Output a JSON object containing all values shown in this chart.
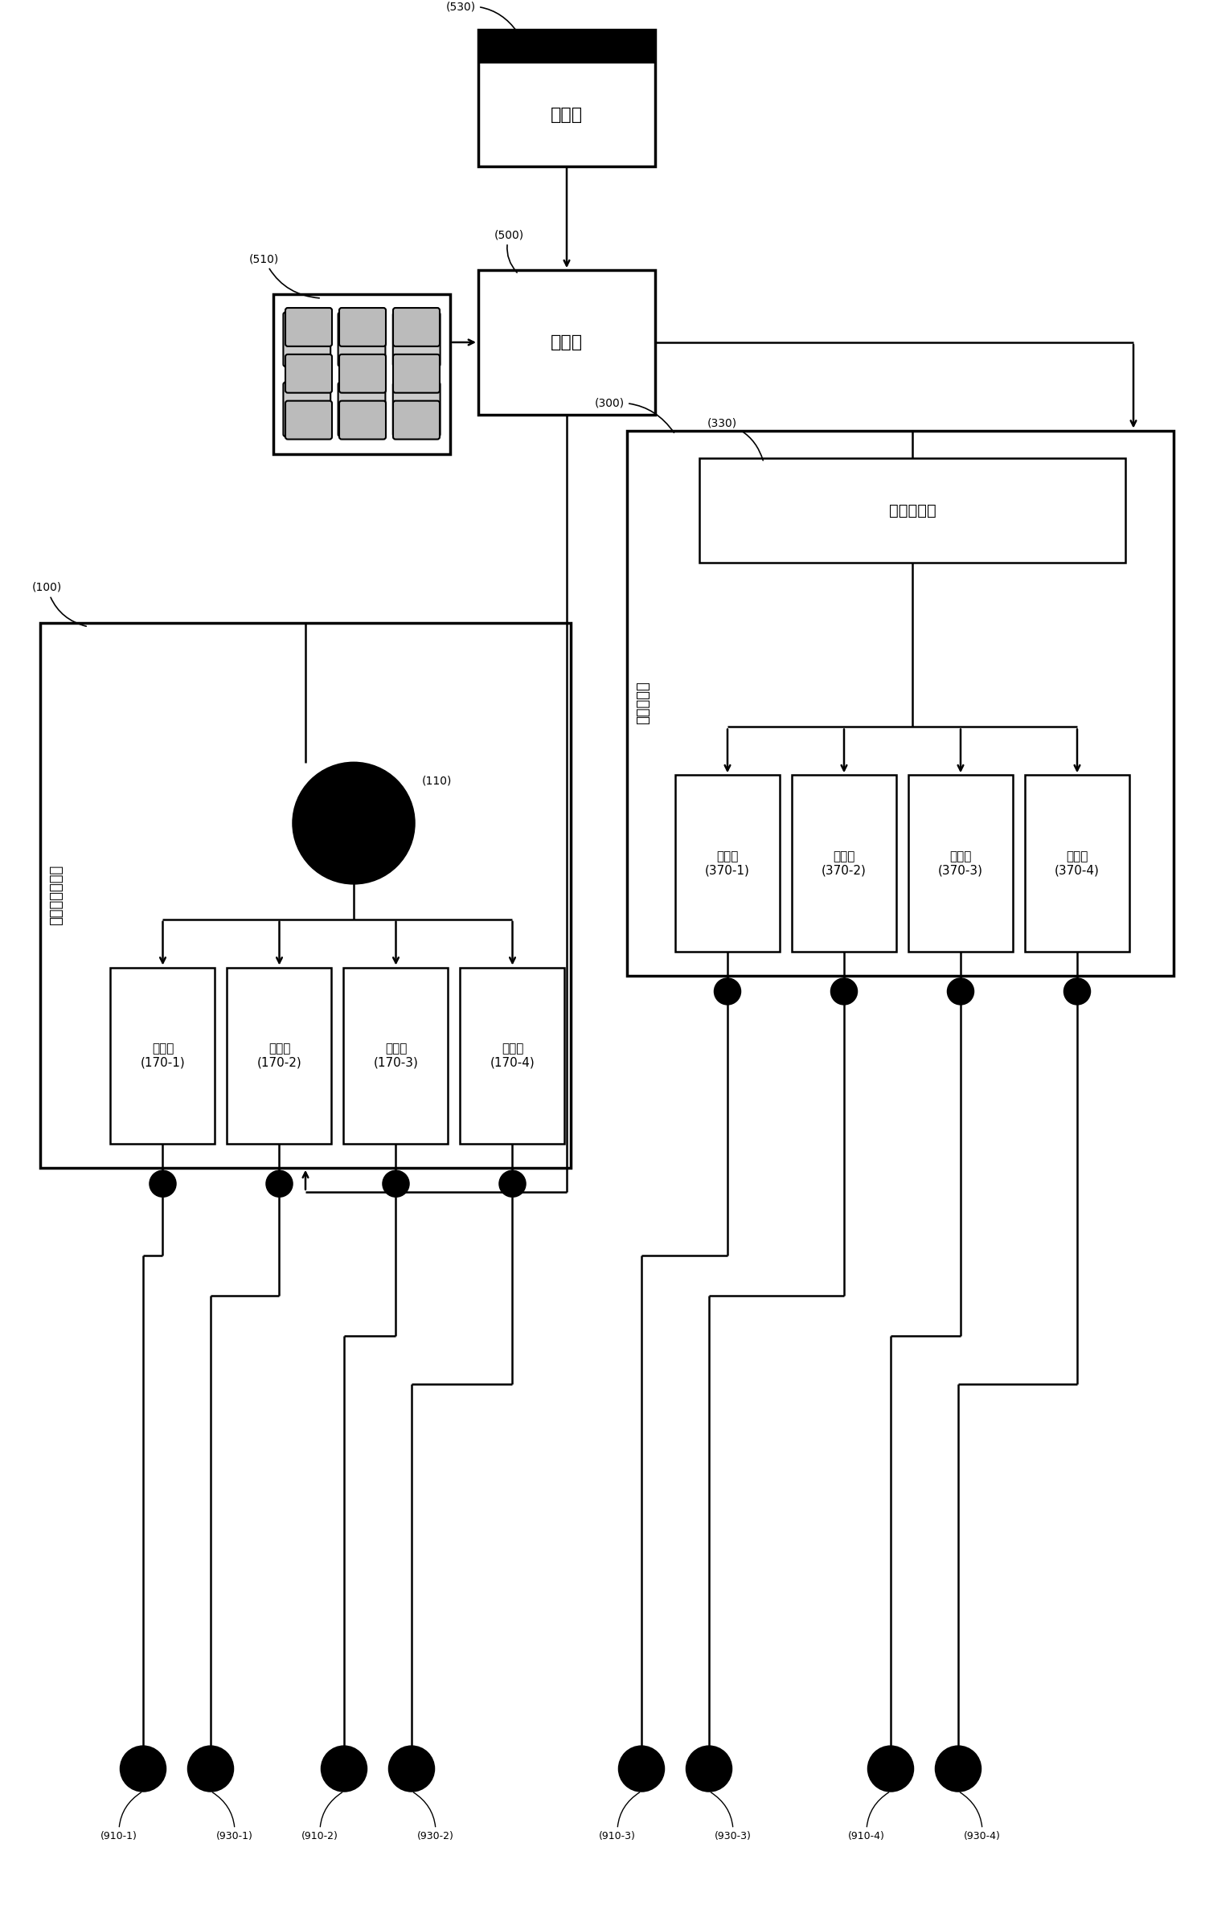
{
  "bg_color": "#ffffff",
  "lc": "#000000",
  "lw": 1.8,
  "lw_thick": 2.5,
  "label_530": "(530)",
  "label_510": "(510)",
  "label_500": "(500)",
  "label_300": "(300)",
  "label_330": "(330)",
  "label_100": "(100)",
  "label_110": "(110)",
  "text_display": "显示部",
  "text_control": "控制部",
  "text_impedance_measure": "阻抗测定部",
  "text_impedance_calc": "阻抗计算部",
  "text_input_signal": "输入信号生成部",
  "text_mod1": "调制部\n(170-1)",
  "text_mod2": "调制部\n(170-2)",
  "text_mod3": "调制部\n(170-3)",
  "text_mod4": "调制部\n(170-4)",
  "text_demod1": "解调部\n(370-1)",
  "text_demod2": "解调部\n(370-2)",
  "text_demod3": "解调部\n(370-3)",
  "text_demod4": "解调部\n(370-4)",
  "elec_labels_left": [
    "(910-1)",
    "(930-1)",
    "(910-2)",
    "(930-2)"
  ],
  "elec_labels_right": [
    "(910-3)",
    "(930-3)",
    "(910-4)",
    "(930-4)"
  ]
}
